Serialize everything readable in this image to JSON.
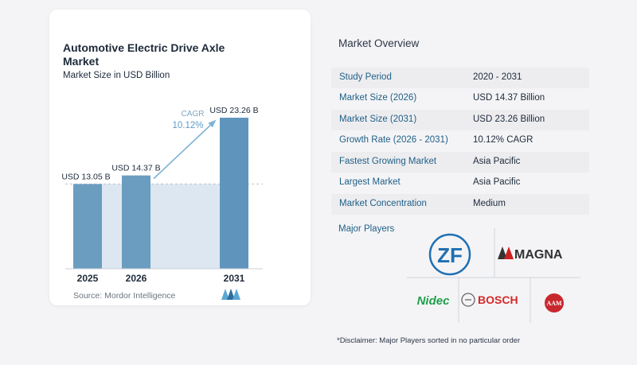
{
  "chart": {
    "title": "Automotive Electric Drive Axle Market",
    "subtitle": "Market Size in USD Billion",
    "cagr_label": "CAGR",
    "cagr_value": "10.12%",
    "source": "Source: Mordor Intelligence",
    "colors": {
      "bar": "#6b9dc0",
      "bar_dark": "#3f7aa3",
      "band": "#dce7f1",
      "arrow": "#7fb3d6"
    }
  },
  "chart_data": {
    "type": "bar",
    "categories": [
      "2025",
      "2026",
      "2031"
    ],
    "values": [
      13.05,
      14.37,
      23.26
    ],
    "data_labels": [
      "USD 13.05 B",
      "USD 14.37 B",
      "USD 23.26 B"
    ],
    "title": "Automotive Electric Drive Axle Market",
    "subtitle": "Market Size in USD Billion",
    "xlabel": "",
    "ylabel": "",
    "ylim": [
      0,
      25
    ],
    "grid": false,
    "annotation": "CAGR 10.12%"
  },
  "overview": {
    "title": "Market Overview",
    "rows": [
      {
        "label": "Study Period",
        "value": "2020 - 2031"
      },
      {
        "label": "Market Size (2026)",
        "value": "USD 14.37 Billion"
      },
      {
        "label": "Market Size (2031)",
        "value": "USD 23.26 Billion"
      },
      {
        "label": "Growth Rate (2026 - 2031)",
        "value": "10.12% CAGR"
      },
      {
        "label": "Fastest Growing Market",
        "value": "Asia Pacific"
      },
      {
        "label": "Largest Market",
        "value": "Asia Pacific"
      },
      {
        "label": "Market Concentration",
        "value": "Medium"
      }
    ],
    "players_title": "Major Players",
    "players": {
      "zf": "ZF",
      "magna": "MAGNA",
      "nidec": "Nidec",
      "bosch": "BOSCH",
      "aam": "AAM"
    },
    "disclaimer": "*Disclaimer: Major Players sorted in no particular order"
  }
}
